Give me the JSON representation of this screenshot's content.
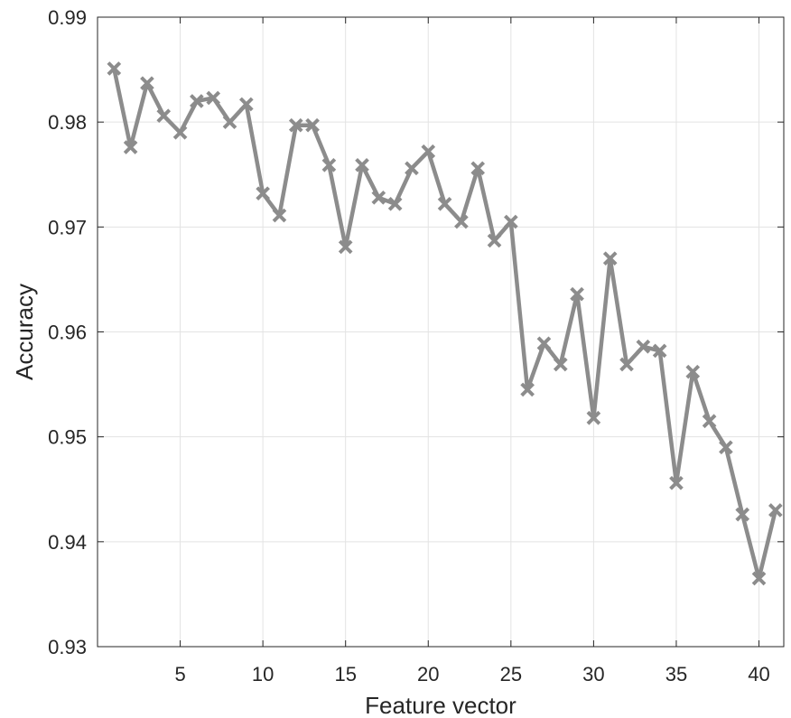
{
  "chart_data": {
    "type": "line",
    "title": "",
    "xlabel": "Feature vector",
    "ylabel": "Accuracy",
    "xlim": [
      0,
      41.5
    ],
    "ylim": [
      0.93,
      0.99
    ],
    "xticks": [
      5,
      10,
      15,
      20,
      25,
      30,
      35,
      40
    ],
    "xtick_labels": [
      "5",
      "10",
      "15",
      "20",
      "25",
      "30",
      "35",
      "40"
    ],
    "yticks": [
      0.93,
      0.94,
      0.95,
      0.96,
      0.97,
      0.98,
      0.99
    ],
    "ytick_labels": [
      "0.93",
      "0.94",
      "0.95",
      "0.96",
      "0.97",
      "0.98",
      "0.99"
    ],
    "grid": true,
    "legend": "none",
    "line_color": "#8c8c8c",
    "marker": "x",
    "series": [
      {
        "x": [
          1,
          2,
          3,
          4,
          5,
          6,
          7,
          8,
          9,
          10,
          11,
          12,
          13,
          14,
          15,
          16,
          17,
          18,
          19,
          20,
          21,
          22,
          23,
          24,
          25,
          26,
          27,
          28,
          29,
          30,
          31,
          32,
          33,
          34,
          35,
          36,
          37,
          38,
          39,
          40,
          41
        ],
        "values": [
          0.9851,
          0.9776,
          0.9837,
          0.9806,
          0.979,
          0.982,
          0.9823,
          0.98,
          0.9817,
          0.9732,
          0.9711,
          0.9797,
          0.9797,
          0.9759,
          0.9681,
          0.9759,
          0.9728,
          0.9722,
          0.9756,
          0.9772,
          0.9722,
          0.9705,
          0.9756,
          0.9687,
          0.9705,
          0.9545,
          0.9589,
          0.9569,
          0.9636,
          0.9518,
          0.967,
          0.9569,
          0.9586,
          0.9582,
          0.9456,
          0.9562,
          0.9515,
          0.949,
          0.9426,
          0.9365,
          0.943
        ]
      }
    ]
  }
}
